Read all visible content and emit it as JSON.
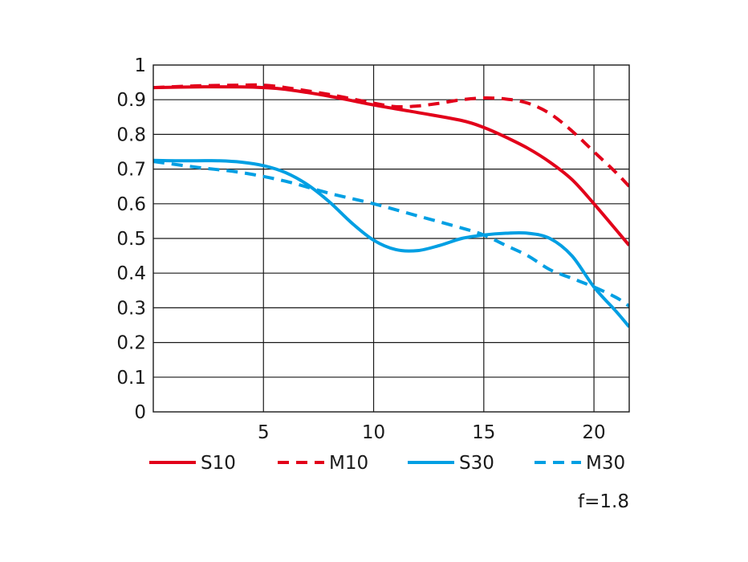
{
  "chart_data": {
    "type": "line",
    "title": "",
    "xlabel": "",
    "ylabel": "",
    "xlim": [
      0,
      21.6
    ],
    "ylim": [
      0,
      1
    ],
    "x_ticks": [
      "5",
      "10",
      "15",
      "20"
    ],
    "y_ticks": [
      "0",
      "0.1",
      "0.2",
      "0.3",
      "0.4",
      "0.5",
      "0.6",
      "0.7",
      "0.8",
      "0.9",
      "1"
    ],
    "grid": true,
    "legend_position": "bottom",
    "annotation": "f=1.8",
    "series": [
      {
        "name": "S10",
        "color": "#e2001a",
        "dash": "solid",
        "x": [
          0,
          2,
          4,
          5,
          6,
          8,
          10,
          12,
          14,
          15,
          16,
          17,
          18,
          19,
          20,
          21.6
        ],
        "y": [
          0.935,
          0.937,
          0.937,
          0.935,
          0.93,
          0.91,
          0.885,
          0.863,
          0.84,
          0.82,
          0.792,
          0.76,
          0.72,
          0.67,
          0.6,
          0.48
        ]
      },
      {
        "name": "M10",
        "color": "#e2001a",
        "dash": "dashed",
        "x": [
          0,
          2,
          4,
          5,
          6,
          8,
          10,
          11,
          12,
          13,
          14,
          15,
          16,
          17,
          18,
          19,
          20,
          21,
          21.6
        ],
        "y": [
          0.935,
          0.94,
          0.942,
          0.942,
          0.935,
          0.915,
          0.89,
          0.88,
          0.882,
          0.89,
          0.9,
          0.905,
          0.902,
          0.89,
          0.86,
          0.81,
          0.75,
          0.69,
          0.65
        ]
      },
      {
        "name": "S30",
        "color": "#009fe3",
        "dash": "solid",
        "x": [
          0,
          1,
          2,
          3,
          4,
          5,
          6,
          7,
          8,
          9,
          10,
          11,
          12,
          13,
          14,
          15,
          16,
          17,
          18,
          19,
          20,
          21,
          21.6
        ],
        "y": [
          0.725,
          0.724,
          0.724,
          0.724,
          0.72,
          0.71,
          0.69,
          0.655,
          0.605,
          0.545,
          0.495,
          0.468,
          0.465,
          0.48,
          0.5,
          0.51,
          0.515,
          0.515,
          0.5,
          0.45,
          0.36,
          0.29,
          0.245
        ]
      },
      {
        "name": "M30",
        "color": "#009fe3",
        "dash": "dashed",
        "x": [
          0,
          2,
          4,
          6,
          8,
          10,
          12,
          14,
          15,
          16,
          17,
          18,
          19,
          20,
          21,
          21.6
        ],
        "y": [
          0.722,
          0.705,
          0.69,
          0.665,
          0.63,
          0.6,
          0.565,
          0.53,
          0.51,
          0.48,
          0.45,
          0.41,
          0.385,
          0.36,
          0.33,
          0.305
        ]
      }
    ]
  }
}
